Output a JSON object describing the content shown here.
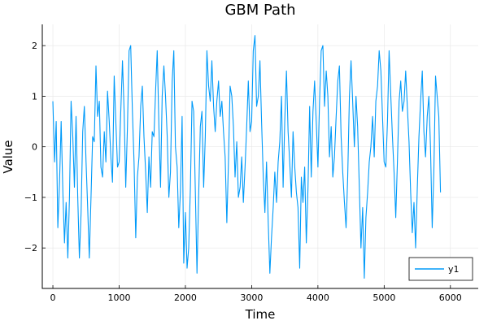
{
  "chart_data": {
    "type": "line",
    "title": "GBM Path",
    "xlabel": "Time",
    "ylabel": "Value",
    "xlim": [
      -160,
      6420
    ],
    "ylim": [
      -2.8,
      2.42
    ],
    "x_ticks": [
      0,
      1000,
      2000,
      3000,
      4000,
      5000,
      6000
    ],
    "y_ticks": [
      -2,
      -1,
      0,
      1,
      2
    ],
    "grid": true,
    "legend_position": "bottom-right",
    "series": [
      {
        "name": "y1",
        "color": "#009af9",
        "x_start": 0,
        "x_step": 25,
        "values": [
          0.9,
          -0.3,
          0.5,
          -1.6,
          -0.7,
          0.5,
          -0.9,
          -1.9,
          -1.1,
          -2.2,
          -1.0,
          0.9,
          0.2,
          -0.8,
          0.6,
          -1.0,
          -2.2,
          -1.3,
          0.3,
          0.8,
          -0.3,
          -1.2,
          -2.2,
          -1.0,
          0.2,
          0.1,
          1.6,
          0.6,
          0.9,
          -0.4,
          -0.6,
          0.3,
          -0.3,
          1.1,
          0.5,
          -0.2,
          -0.7,
          1.4,
          0.5,
          -0.4,
          -0.3,
          0.7,
          1.7,
          0.7,
          -0.8,
          0.4,
          1.9,
          2.0,
          0.7,
          -0.3,
          -1.8,
          -0.6,
          -0.2,
          0.8,
          1.2,
          0.2,
          -0.5,
          -1.3,
          -0.2,
          -0.8,
          0.3,
          0.2,
          1.1,
          1.9,
          0.4,
          -0.8,
          1.0,
          1.6,
          1.0,
          0.2,
          -1.0,
          -0.5,
          1.3,
          1.9,
          0.0,
          -0.4,
          -1.6,
          -0.9,
          0.6,
          -2.3,
          -1.3,
          -2.4,
          -2.0,
          -0.8,
          0.9,
          0.7,
          -0.9,
          -2.5,
          -1.0,
          0.4,
          0.7,
          -0.8,
          0.2,
          1.9,
          1.2,
          0.9,
          1.7,
          0.8,
          0.3,
          0.9,
          1.3,
          0.6,
          0.9,
          0.3,
          -0.2,
          -1.5,
          -0.3,
          1.2,
          1.0,
          0.4,
          -0.6,
          0.1,
          -1.0,
          -0.8,
          -0.2,
          -1.1,
          -0.4,
          0.4,
          1.3,
          0.3,
          0.5,
          1.9,
          2.2,
          0.8,
          1.0,
          1.7,
          0.5,
          -0.6,
          -1.3,
          -0.3,
          -1.5,
          -2.5,
          -1.8,
          -1.2,
          -0.5,
          -1.1,
          -0.3,
          0.1,
          1.0,
          -0.8,
          0.5,
          1.5,
          0.3,
          -0.3,
          -1.0,
          0.3,
          -0.4,
          -0.9,
          -1.2,
          -2.4,
          -0.6,
          -1.1,
          -0.4,
          -1.9,
          -0.8,
          0.8,
          -0.6,
          0.7,
          1.3,
          0.5,
          -0.4,
          0.9,
          1.9,
          2.0,
          0.8,
          1.5,
          1.0,
          -0.2,
          0.4,
          -0.6,
          -0.2,
          0.6,
          1.3,
          1.6,
          0.2,
          -0.5,
          -1.1,
          -1.6,
          -0.6,
          1.0,
          1.7,
          0.9,
          0.0,
          1.0,
          0.4,
          -0.8,
          -2.0,
          -1.2,
          -2.6,
          -1.4,
          -0.9,
          -0.3,
          0.0,
          0.6,
          -0.2,
          0.9,
          1.2,
          1.9,
          1.5,
          0.6,
          -0.3,
          -0.4,
          0.5,
          1.9,
          1.0,
          0.2,
          -0.5,
          -1.4,
          -0.3,
          0.9,
          1.3,
          0.7,
          0.9,
          1.5,
          0.8,
          0.1,
          -0.9,
          -1.7,
          -1.1,
          -2.0,
          -0.8,
          0.2,
          0.9,
          1.5,
          0.3,
          -0.2,
          0.6,
          1.0,
          0.0,
          -1.6,
          -0.5,
          1.4,
          1.0,
          0.6,
          -0.9
        ]
      }
    ]
  }
}
